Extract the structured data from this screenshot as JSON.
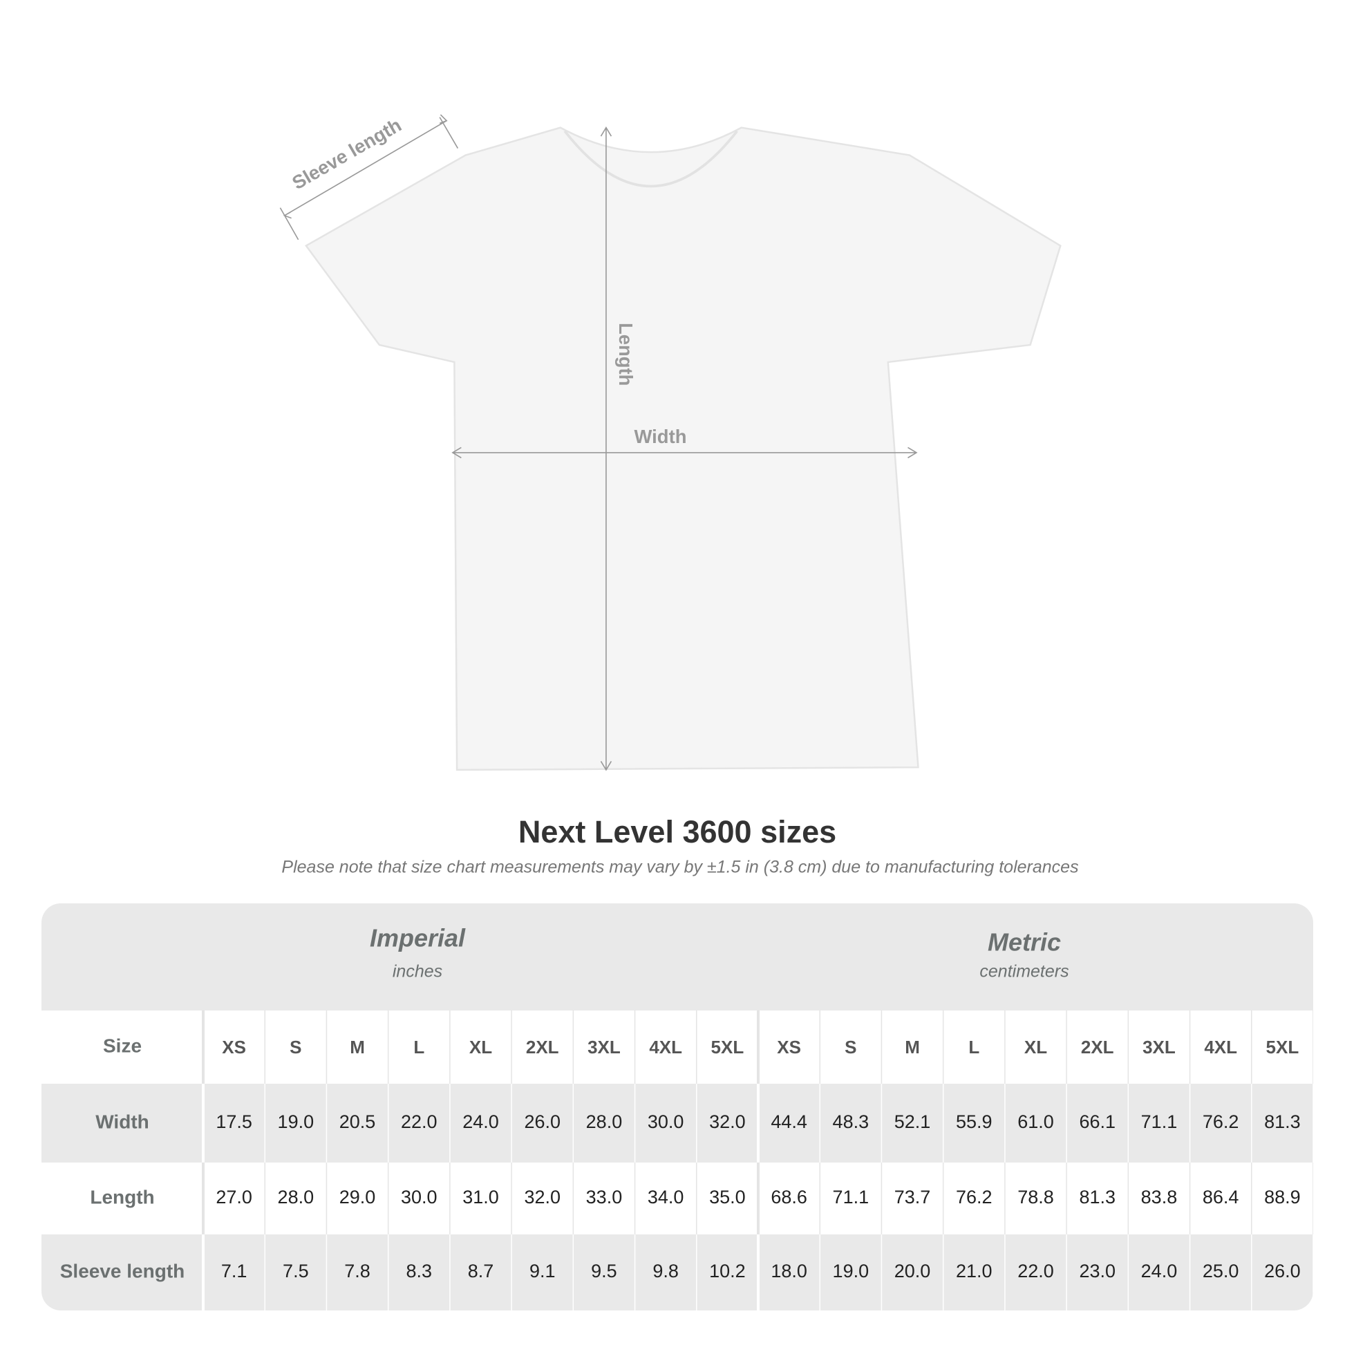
{
  "diagram": {
    "sleeve_label": "Sleeve length",
    "length_label": "Length",
    "width_label": "Width"
  },
  "header": {
    "title": "Next Level 3600 sizes",
    "note": "Please note that size chart measurements may vary by ±1.5 in (3.8 cm) due to manufacturing tolerances"
  },
  "table": {
    "groups": [
      {
        "name": "Imperial",
        "unit": "inches"
      },
      {
        "name": "Metric",
        "unit": "centimeters"
      }
    ],
    "size_label": "Size",
    "sizes": [
      [
        "XS",
        "S",
        "M",
        "L",
        "XL",
        "2XL",
        "3XL",
        "4XL",
        "5XL"
      ],
      [
        "XS",
        "S",
        "M",
        "L",
        "XL",
        "2XL",
        "3XL",
        "4XL",
        "5XL"
      ]
    ],
    "rows": [
      {
        "label": "Width",
        "values": [
          [
            "17.5",
            "19.0",
            "20.5",
            "22.0",
            "24.0",
            "26.0",
            "28.0",
            "30.0",
            "32.0"
          ],
          [
            "44.4",
            "48.3",
            "52.1",
            "55.9",
            "61.0",
            "66.1",
            "71.1",
            "76.2",
            "81.3"
          ]
        ]
      },
      {
        "label": "Length",
        "values": [
          [
            "27.0",
            "28.0",
            "29.0",
            "30.0",
            "31.0",
            "32.0",
            "33.0",
            "34.0",
            "35.0"
          ],
          [
            "68.6",
            "71.1",
            "73.7",
            "76.2",
            "78.8",
            "81.3",
            "83.8",
            "86.4",
            "88.9"
          ]
        ]
      },
      {
        "label": "Sleeve length",
        "values": [
          [
            "7.1",
            "7.5",
            "7.8",
            "8.3",
            "8.7",
            "9.1",
            "9.5",
            "9.8",
            "10.2"
          ],
          [
            "18.0",
            "19.0",
            "20.0",
            "21.0",
            "22.0",
            "23.0",
            "24.0",
            "25.0",
            "26.0"
          ]
        ]
      }
    ]
  }
}
